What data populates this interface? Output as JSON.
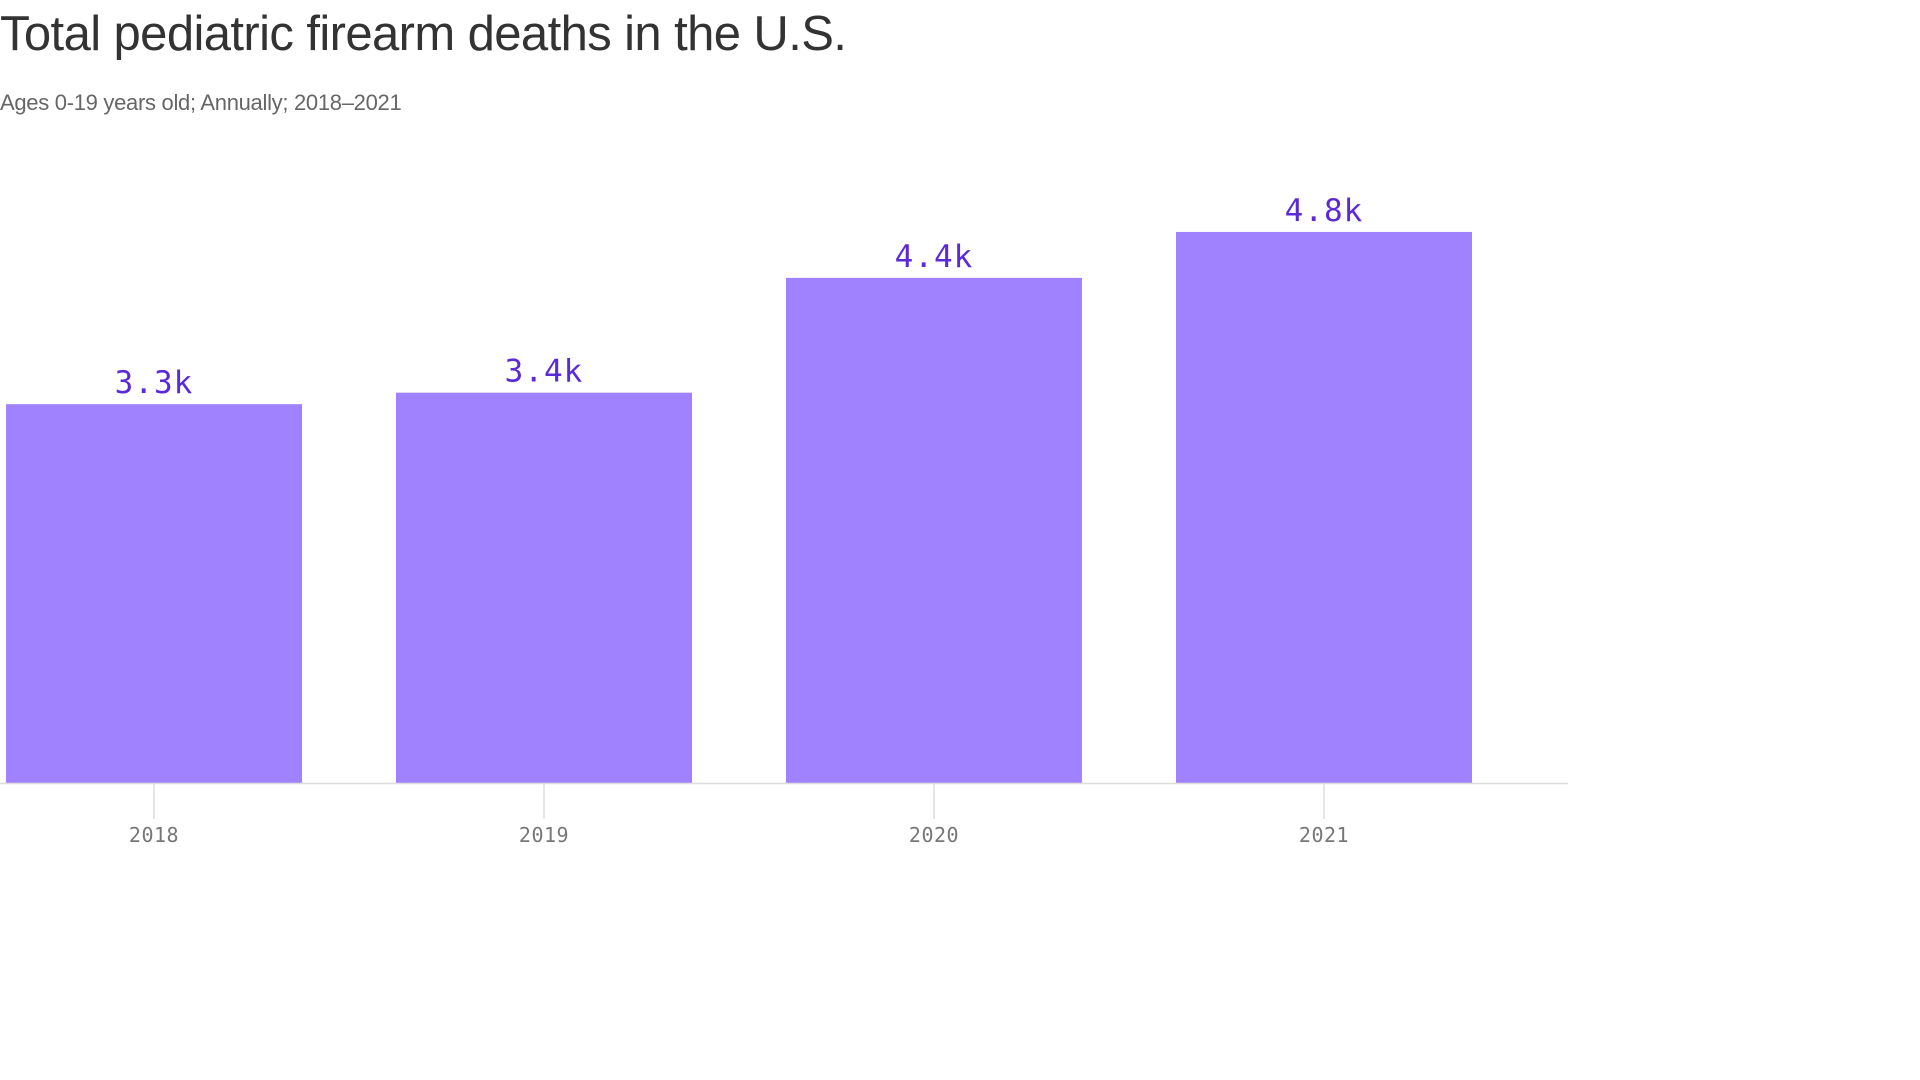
{
  "colors": {
    "bar": "#a182fe",
    "value_label": "#5b2ad7",
    "axis": "#dddddd",
    "tick": "#dddddd"
  },
  "chart_data": {
    "type": "bar",
    "title": "Total pediatric firearm deaths in the U.S.",
    "subtitle": "Ages 0-19 years old; Annually; 2018–2021",
    "xlabel": "",
    "ylabel": "",
    "categories": [
      "2018",
      "2019",
      "2020",
      "2021"
    ],
    "values": [
      3300,
      3400,
      4400,
      4800
    ],
    "value_labels": [
      "3.3k",
      "3.4k",
      "4.4k",
      "4.8k"
    ],
    "ylim": [
      0,
      5000
    ],
    "grid": false
  }
}
